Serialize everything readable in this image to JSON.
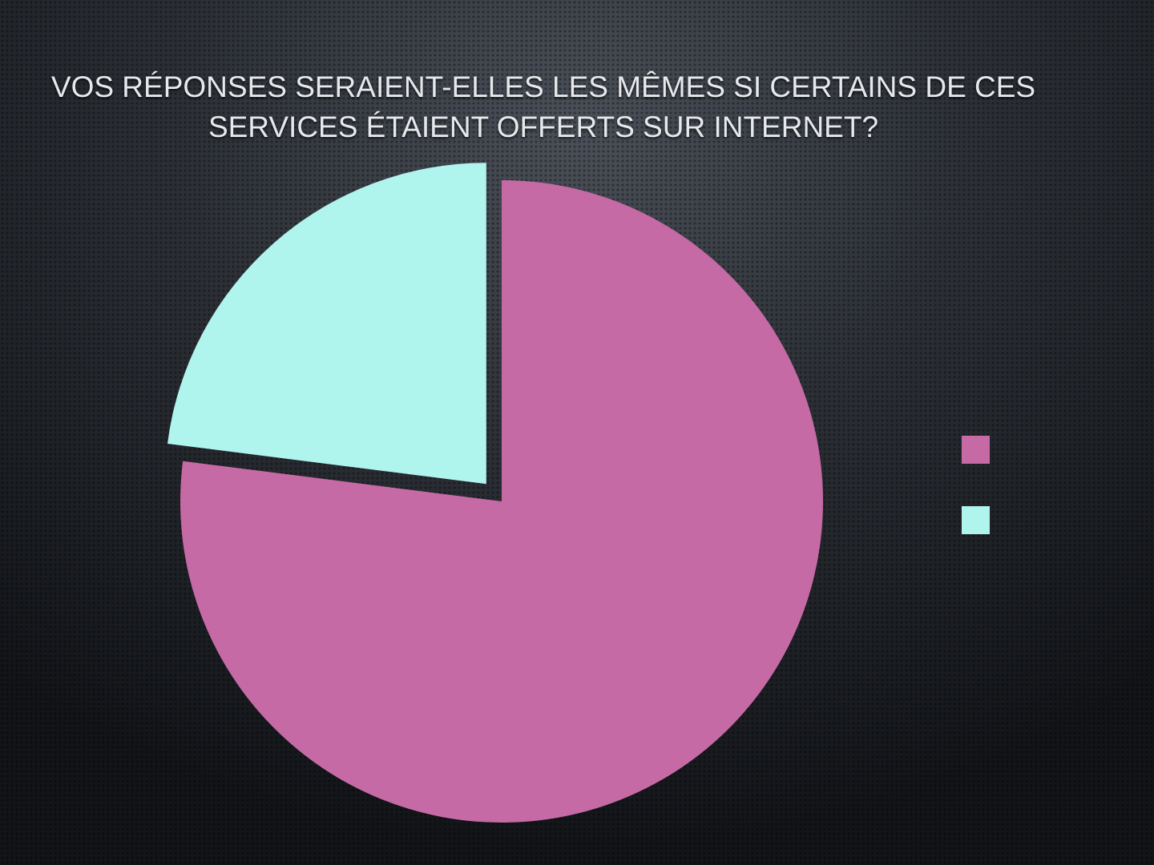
{
  "chart_data": {
    "type": "pie",
    "title": "VOS RÉPONSES SERAIENT-ELLES LES MÊMES SI CERTAINS DE CES SERVICES ÉTAIENT OFFERTS SUR INTERNET?",
    "values": [
      77,
      23
    ],
    "colors": [
      "#c66aa6",
      "#b0f4ee"
    ]
  }
}
